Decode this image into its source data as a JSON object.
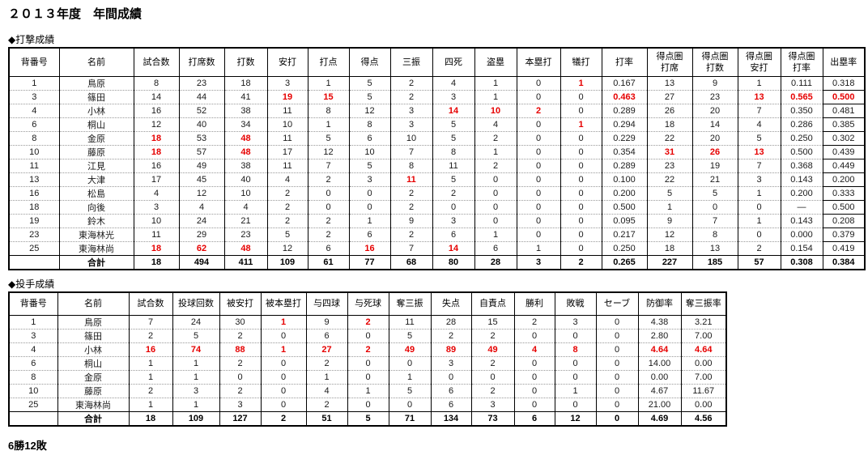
{
  "page": {
    "title": "２０１３年度　年間成績",
    "record_summary": "6勝12敗"
  },
  "colors": {
    "highlight_red": "#e60000",
    "text": "#000000",
    "grid_solid": "#000000",
    "grid_dotted": "#999999"
  },
  "batting": {
    "section_label": "◆打撃成績",
    "columns": [
      "背番号",
      "名前",
      "試合数",
      "打席数",
      "打数",
      "安打",
      "打点",
      "得点",
      "三振",
      "四死",
      "盗塁",
      "本塁打",
      "犠打",
      "打率",
      "得点圏\n打席",
      "得点圏\n打数",
      "得点圏\n安打",
      "得点圏\n打率",
      "出塁率"
    ],
    "rows": [
      [
        "1",
        "鳥原",
        "8",
        "23",
        "18",
        "3",
        "1",
        "5",
        "2",
        "4",
        "1",
        "0",
        "1",
        "0.167",
        "13",
        "9",
        "1",
        "0.111",
        "0.318"
      ],
      [
        "3",
        "篠田",
        "14",
        "44",
        "41",
        "19",
        "15",
        "5",
        "2",
        "3",
        "1",
        "0",
        "0",
        "0.463",
        "27",
        "23",
        "13",
        "0.565",
        "0.500"
      ],
      [
        "4",
        "小林",
        "16",
        "52",
        "38",
        "11",
        "8",
        "12",
        "3",
        "14",
        "10",
        "2",
        "0",
        "0.289",
        "26",
        "20",
        "7",
        "0.350",
        "0.481"
      ],
      [
        "6",
        "桐山",
        "12",
        "40",
        "34",
        "10",
        "1",
        "8",
        "3",
        "5",
        "4",
        "0",
        "1",
        "0.294",
        "18",
        "14",
        "4",
        "0.286",
        "0.385"
      ],
      [
        "8",
        "金原",
        "18",
        "53",
        "48",
        "11",
        "5",
        "6",
        "10",
        "5",
        "2",
        "0",
        "0",
        "0.229",
        "22",
        "20",
        "5",
        "0.250",
        "0.302"
      ],
      [
        "10",
        "藤原",
        "18",
        "57",
        "48",
        "17",
        "12",
        "10",
        "7",
        "8",
        "1",
        "0",
        "0",
        "0.354",
        "31",
        "26",
        "13",
        "0.500",
        "0.439"
      ],
      [
        "11",
        "江見",
        "16",
        "49",
        "38",
        "11",
        "7",
        "5",
        "8",
        "11",
        "2",
        "0",
        "0",
        "0.289",
        "23",
        "19",
        "7",
        "0.368",
        "0.449"
      ],
      [
        "13",
        "大津",
        "17",
        "45",
        "40",
        "4",
        "2",
        "3",
        "11",
        "5",
        "0",
        "0",
        "0",
        "0.100",
        "22",
        "21",
        "3",
        "0.143",
        "0.200"
      ],
      [
        "16",
        "松島",
        "4",
        "12",
        "10",
        "2",
        "0",
        "0",
        "2",
        "2",
        "0",
        "0",
        "0",
        "0.200",
        "5",
        "5",
        "1",
        "0.200",
        "0.333"
      ],
      [
        "18",
        "向後",
        "3",
        "4",
        "4",
        "2",
        "0",
        "0",
        "2",
        "0",
        "0",
        "0",
        "0",
        "0.500",
        "1",
        "0",
        "0",
        "―",
        "0.500"
      ],
      [
        "19",
        "鈴木",
        "10",
        "24",
        "21",
        "2",
        "2",
        "1",
        "9",
        "3",
        "0",
        "0",
        "0",
        "0.095",
        "9",
        "7",
        "1",
        "0.143",
        "0.208"
      ],
      [
        "23",
        "東海林光",
        "11",
        "29",
        "23",
        "5",
        "2",
        "6",
        "2",
        "6",
        "1",
        "0",
        "0",
        "0.217",
        "12",
        "8",
        "0",
        "0.000",
        "0.379"
      ],
      [
        "25",
        "東海林尚",
        "18",
        "62",
        "48",
        "12",
        "6",
        "16",
        "7",
        "14",
        "6",
        "1",
        "0",
        "0.250",
        "18",
        "13",
        "2",
        "0.154",
        "0.419"
      ]
    ],
    "total_row": [
      "",
      "合計",
      "18",
      "494",
      "411",
      "109",
      "61",
      "77",
      "68",
      "80",
      "28",
      "3",
      "2",
      "0.265",
      "227",
      "185",
      "57",
      "0.308",
      "0.384"
    ],
    "red_cells": [
      [
        0,
        12
      ],
      [
        1,
        5
      ],
      [
        1,
        6
      ],
      [
        1,
        13
      ],
      [
        1,
        16
      ],
      [
        1,
        17
      ],
      [
        1,
        18
      ],
      [
        2,
        9
      ],
      [
        2,
        10
      ],
      [
        2,
        11
      ],
      [
        3,
        12
      ],
      [
        4,
        2
      ],
      [
        4,
        4
      ],
      [
        5,
        2
      ],
      [
        5,
        4
      ],
      [
        5,
        14
      ],
      [
        5,
        15
      ],
      [
        5,
        16
      ],
      [
        7,
        8
      ],
      [
        12,
        2
      ],
      [
        12,
        3
      ],
      [
        12,
        4
      ],
      [
        12,
        7
      ],
      [
        12,
        9
      ]
    ]
  },
  "pitching": {
    "section_label": "◆投手成績",
    "columns": [
      "背番号",
      "名前",
      "試合数",
      "投球回数",
      "被安打",
      "被本塁打",
      "与四球",
      "与死球",
      "奪三振",
      "失点",
      "自責点",
      "勝利",
      "敗戦",
      "セーブ",
      "防御率",
      "奪三振率"
    ],
    "rows": [
      [
        "1",
        "鳥原",
        "7",
        "24",
        "30",
        "1",
        "9",
        "2",
        "11",
        "28",
        "15",
        "2",
        "3",
        "0",
        "4.38",
        "3.21"
      ],
      [
        "3",
        "篠田",
        "2",
        "5",
        "2",
        "0",
        "6",
        "0",
        "5",
        "2",
        "2",
        "0",
        "0",
        "0",
        "2.80",
        "7.00"
      ],
      [
        "4",
        "小林",
        "16",
        "74",
        "88",
        "1",
        "27",
        "2",
        "49",
        "89",
        "49",
        "4",
        "8",
        "0",
        "4.64",
        "4.64"
      ],
      [
        "6",
        "桐山",
        "1",
        "1",
        "2",
        "0",
        "2",
        "0",
        "0",
        "3",
        "2",
        "0",
        "0",
        "0",
        "14.00",
        "0.00"
      ],
      [
        "8",
        "金原",
        "1",
        "1",
        "0",
        "0",
        "1",
        "0",
        "1",
        "0",
        "0",
        "0",
        "0",
        "0",
        "0.00",
        "7.00"
      ],
      [
        "10",
        "藤原",
        "2",
        "3",
        "2",
        "0",
        "4",
        "1",
        "5",
        "6",
        "2",
        "0",
        "1",
        "0",
        "4.67",
        "11.67"
      ],
      [
        "25",
        "東海林尚",
        "1",
        "1",
        "3",
        "0",
        "2",
        "0",
        "0",
        "6",
        "3",
        "0",
        "0",
        "0",
        "21.00",
        "0.00"
      ]
    ],
    "total_row": [
      "",
      "合計",
      "18",
      "109",
      "127",
      "2",
      "51",
      "5",
      "71",
      "134",
      "73",
      "6",
      "12",
      "0",
      "4.69",
      "4.56"
    ],
    "red_cells": [
      [
        0,
        5
      ],
      [
        0,
        7
      ],
      [
        2,
        2
      ],
      [
        2,
        3
      ],
      [
        2,
        4
      ],
      [
        2,
        5
      ],
      [
        2,
        6
      ],
      [
        2,
        7
      ],
      [
        2,
        8
      ],
      [
        2,
        9
      ],
      [
        2,
        10
      ],
      [
        2,
        11
      ],
      [
        2,
        12
      ],
      [
        2,
        14
      ],
      [
        2,
        15
      ]
    ]
  }
}
